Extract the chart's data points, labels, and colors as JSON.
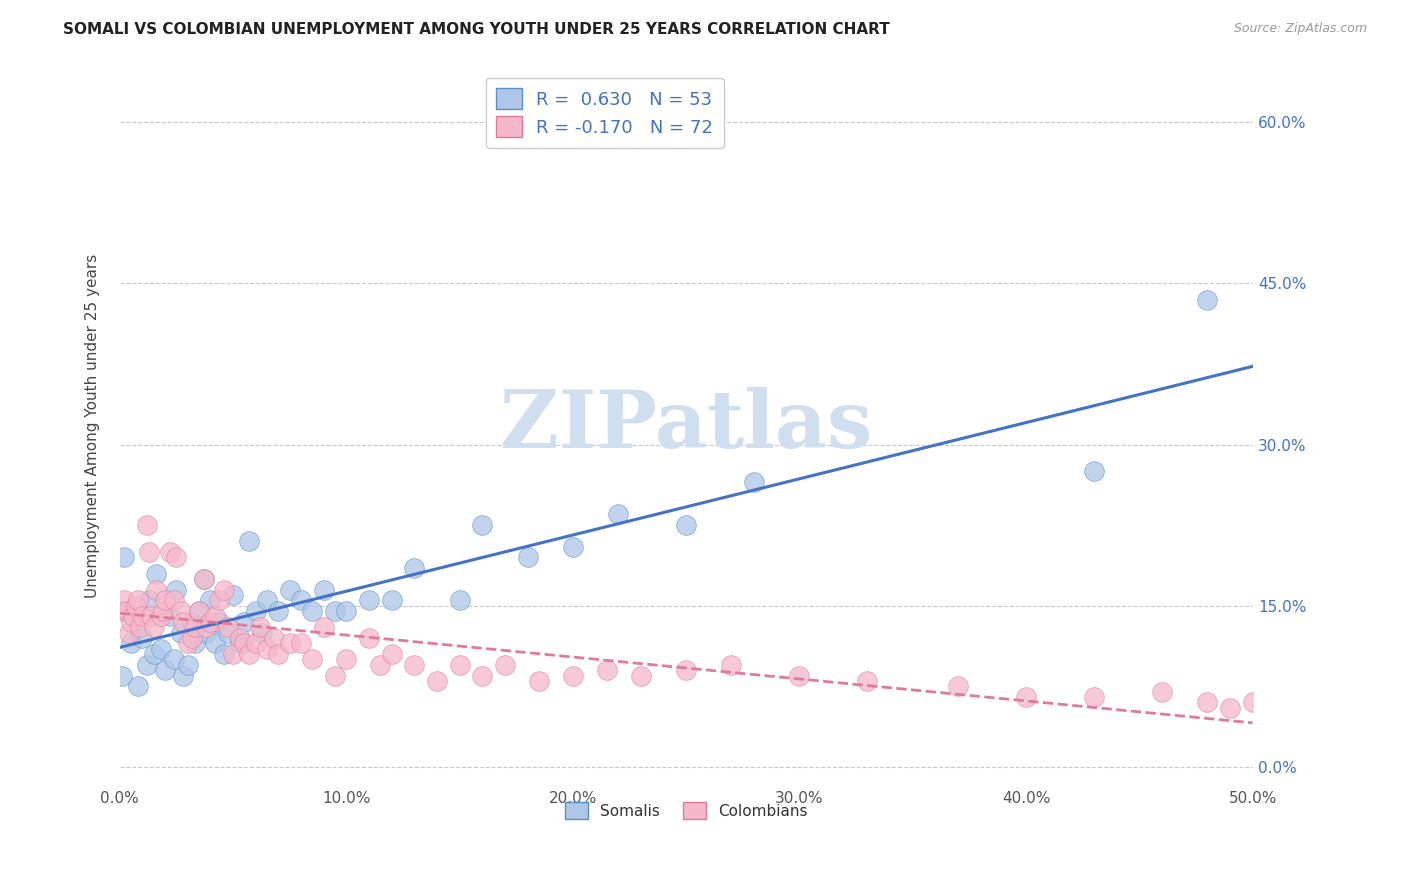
{
  "title": "SOMALI VS COLOMBIAN UNEMPLOYMENT AMONG YOUTH UNDER 25 YEARS CORRELATION CHART",
  "source": "Source: ZipAtlas.com",
  "ylabel": "Unemployment Among Youth under 25 years",
  "xlim": [
    0.0,
    0.5
  ],
  "ylim": [
    -0.015,
    0.65
  ],
  "x_tick_vals": [
    0.0,
    0.1,
    0.2,
    0.3,
    0.4,
    0.5
  ],
  "x_tick_labels": [
    "0.0%",
    "10.0%",
    "20.0%",
    "30.0%",
    "40.0%",
    "50.0%"
  ],
  "y_tick_vals": [
    0.0,
    0.15,
    0.3,
    0.45,
    0.6
  ],
  "y_tick_labels": [
    "0.0%",
    "15.0%",
    "30.0%",
    "45.0%",
    "60.0%"
  ],
  "somali_R": 0.63,
  "somali_N": 53,
  "colombian_R": -0.17,
  "colombian_N": 72,
  "somali_color": "#aec6e8",
  "colombian_color": "#f5b8cb",
  "somali_edge_color": "#5a8fc4",
  "colombian_edge_color": "#e07a9a",
  "somali_line_color": "#4472c4",
  "colombian_line_color": "#e07a9a",
  "legend_blue": "#4472c4",
  "watermark_color": "#d0dff0",
  "somali_scatter_x": [
    0.001,
    0.002,
    0.005,
    0.008,
    0.01,
    0.012,
    0.013,
    0.015,
    0.016,
    0.018,
    0.02,
    0.022,
    0.024,
    0.025,
    0.027,
    0.028,
    0.03,
    0.032,
    0.033,
    0.035,
    0.037,
    0.038,
    0.04,
    0.042,
    0.044,
    0.046,
    0.048,
    0.05,
    0.053,
    0.055,
    0.057,
    0.06,
    0.063,
    0.065,
    0.07,
    0.075,
    0.08,
    0.085,
    0.09,
    0.095,
    0.1,
    0.11,
    0.12,
    0.13,
    0.15,
    0.16,
    0.18,
    0.2,
    0.22,
    0.25,
    0.28,
    0.43,
    0.48
  ],
  "somali_scatter_y": [
    0.085,
    0.195,
    0.115,
    0.075,
    0.12,
    0.095,
    0.155,
    0.105,
    0.18,
    0.11,
    0.09,
    0.14,
    0.1,
    0.165,
    0.125,
    0.085,
    0.095,
    0.135,
    0.115,
    0.145,
    0.175,
    0.125,
    0.155,
    0.115,
    0.135,
    0.105,
    0.125,
    0.16,
    0.115,
    0.135,
    0.21,
    0.145,
    0.125,
    0.155,
    0.145,
    0.165,
    0.155,
    0.145,
    0.165,
    0.145,
    0.145,
    0.155,
    0.155,
    0.185,
    0.155,
    0.225,
    0.195,
    0.205,
    0.235,
    0.225,
    0.265,
    0.275,
    0.435
  ],
  "colombian_scatter_x": [
    0.001,
    0.002,
    0.003,
    0.004,
    0.005,
    0.006,
    0.007,
    0.008,
    0.009,
    0.01,
    0.012,
    0.013,
    0.014,
    0.015,
    0.016,
    0.018,
    0.019,
    0.02,
    0.022,
    0.024,
    0.025,
    0.027,
    0.028,
    0.03,
    0.032,
    0.033,
    0.035,
    0.037,
    0.038,
    0.04,
    0.042,
    0.044,
    0.046,
    0.048,
    0.05,
    0.053,
    0.055,
    0.057,
    0.06,
    0.062,
    0.065,
    0.068,
    0.07,
    0.075,
    0.08,
    0.085,
    0.09,
    0.095,
    0.1,
    0.11,
    0.115,
    0.12,
    0.13,
    0.14,
    0.15,
    0.16,
    0.17,
    0.185,
    0.2,
    0.215,
    0.23,
    0.25,
    0.27,
    0.3,
    0.33,
    0.37,
    0.4,
    0.43,
    0.46,
    0.48,
    0.49,
    0.5
  ],
  "colombian_scatter_y": [
    0.145,
    0.155,
    0.145,
    0.125,
    0.135,
    0.14,
    0.15,
    0.155,
    0.13,
    0.14,
    0.225,
    0.2,
    0.14,
    0.13,
    0.165,
    0.14,
    0.145,
    0.155,
    0.2,
    0.155,
    0.195,
    0.145,
    0.135,
    0.115,
    0.12,
    0.13,
    0.145,
    0.175,
    0.13,
    0.135,
    0.14,
    0.155,
    0.165,
    0.13,
    0.105,
    0.12,
    0.115,
    0.105,
    0.115,
    0.13,
    0.11,
    0.12,
    0.105,
    0.115,
    0.115,
    0.1,
    0.13,
    0.085,
    0.1,
    0.12,
    0.095,
    0.105,
    0.095,
    0.08,
    0.095,
    0.085,
    0.095,
    0.08,
    0.085,
    0.09,
    0.085,
    0.09,
    0.095,
    0.085,
    0.08,
    0.075,
    0.065,
    0.065,
    0.07,
    0.06,
    0.055,
    0.06
  ]
}
